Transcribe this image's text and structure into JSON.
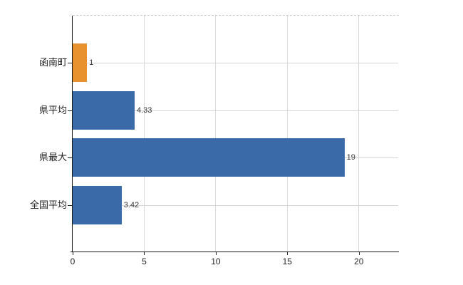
{
  "chart_data": {
    "type": "bar",
    "orientation": "horizontal",
    "title": "",
    "xlabel": "",
    "ylabel": "",
    "legend": "none",
    "grid": true,
    "categories": [
      "函南町",
      "県平均",
      "県最大",
      "全国平均"
    ],
    "values": [
      1,
      4.33,
      19,
      3.42
    ],
    "value_labels": [
      "1",
      "4.33",
      "19",
      "3.42"
    ],
    "bar_colors": [
      "#e8912f",
      "#3a6aa8",
      "#3a6aa8",
      "#3a6aa8"
    ],
    "xlim": [
      0,
      22.8
    ],
    "x_ticks": [
      0,
      5,
      10,
      15,
      20
    ],
    "x_tick_labels": [
      "0",
      "5",
      "10",
      "15",
      "20"
    ]
  },
  "colors": {
    "highlight_bar": "#e8912f",
    "default_bar": "#3a6aa8",
    "axis": "#1a1a1a",
    "gridline": "#d9d9d9",
    "top_border": "#c9c9c9",
    "background": "#ffffff",
    "text": "#222222"
  }
}
